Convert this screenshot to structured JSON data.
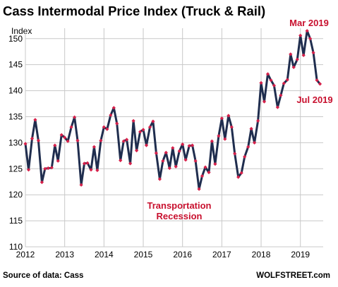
{
  "chart_data": {
    "type": "line",
    "title": "Cass Intermodal Price Index (Truck & Rail)",
    "ylabel": "Index",
    "ylim": [
      110,
      152
    ],
    "yticks": [
      110,
      115,
      120,
      125,
      130,
      135,
      140,
      145,
      150
    ],
    "xlim": [
      2012,
      2019.58
    ],
    "xticks": [
      "2012",
      "2013",
      "2014",
      "2015",
      "2016",
      "2017",
      "2018",
      "2019"
    ],
    "grid": true,
    "colors": {
      "line": "#1f2d4e",
      "marker": "#d6204a",
      "annotation": "#c8102e"
    },
    "series": [
      {
        "x": [
          2012.0,
          2012.08,
          2012.17,
          2012.25,
          2012.33,
          2012.42,
          2012.5,
          2012.58,
          2012.67,
          2012.75,
          2012.83,
          2012.92,
          2013.0,
          2013.08,
          2013.17,
          2013.25,
          2013.33,
          2013.42,
          2013.5,
          2013.58,
          2013.67,
          2013.75,
          2013.83,
          2013.92,
          2014.0,
          2014.08,
          2014.17,
          2014.25,
          2014.33,
          2014.42,
          2014.5,
          2014.58,
          2014.67,
          2014.75,
          2014.83,
          2014.92,
          2015.0,
          2015.08,
          2015.17,
          2015.25,
          2015.33,
          2015.42,
          2015.5,
          2015.58,
          2015.67,
          2015.75,
          2015.83,
          2015.92,
          2016.0,
          2016.08,
          2016.17,
          2016.25,
          2016.33,
          2016.42,
          2016.5,
          2016.58,
          2016.67,
          2016.75,
          2016.83,
          2016.92,
          2017.0,
          2017.08,
          2017.17,
          2017.25,
          2017.33,
          2017.42,
          2017.5,
          2017.58,
          2017.67,
          2017.75,
          2017.83,
          2017.92,
          2018.0,
          2018.08,
          2018.17,
          2018.25,
          2018.33,
          2018.42,
          2018.5,
          2018.58,
          2018.67,
          2018.75,
          2018.83,
          2018.92,
          2019.0,
          2019.08,
          2019.17,
          2019.25,
          2019.33,
          2019.42,
          2019.5
        ],
        "values": [
          129.8,
          124.8,
          130.8,
          134.4,
          130.4,
          122.4,
          125.0,
          125.1,
          125.2,
          129.5,
          126.5,
          131.5,
          131.0,
          130.3,
          133.0,
          134.9,
          130.4,
          121.9,
          126.0,
          126.1,
          124.8,
          129.2,
          124.7,
          130.4,
          133.0,
          132.6,
          135.3,
          136.7,
          133.7,
          126.6,
          130.3,
          130.6,
          126.0,
          134.2,
          128.5,
          132.1,
          132.5,
          129.5,
          133.0,
          134.1,
          128.0,
          123.0,
          126.5,
          128.1,
          125.1,
          129.0,
          125.4,
          128.4,
          129.7,
          126.7,
          129.4,
          129.5,
          126.5,
          121.1,
          123.6,
          125.3,
          124.3,
          130.3,
          125.9,
          131.3,
          134.7,
          130.7,
          135.2,
          133.0,
          127.9,
          123.4,
          124.2,
          127.3,
          129.2,
          132.7,
          130.0,
          134.2,
          141.5,
          137.9,
          143.2,
          142.0,
          141.0,
          136.8,
          139.1,
          141.4,
          142.1,
          147.0,
          144.5,
          146.0,
          150.6,
          146.8,
          151.5,
          150.0,
          147.3,
          142.0,
          141.3
        ]
      }
    ],
    "annotations": [
      {
        "text": "Mar 2019"
      },
      {
        "text": "Jul 2019"
      },
      {
        "text": "Transportation"
      },
      {
        "text": "Recession"
      }
    ]
  },
  "footer": {
    "source": "Source of data: Cass",
    "brand": "WOLFSTREET.com"
  }
}
